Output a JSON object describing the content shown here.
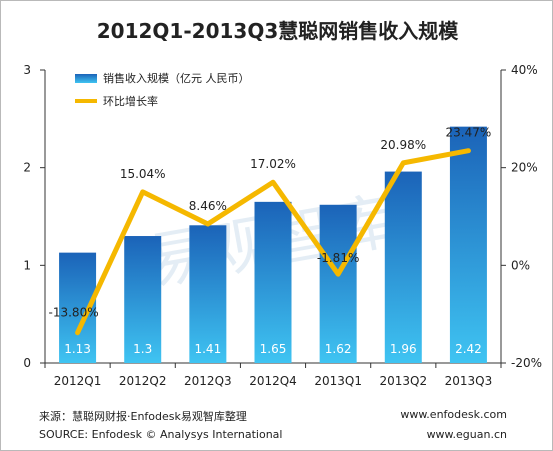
{
  "chart_data": {
    "type": "bar",
    "title": "2012Q1-2013Q3慧聪网销售收入规模",
    "categories": [
      "2012Q1",
      "2012Q2",
      "2012Q3",
      "2012Q4",
      "2013Q1",
      "2013Q2",
      "2013Q3"
    ],
    "series": [
      {
        "name": "销售收入规模（亿元  人民币）",
        "type": "bar",
        "axis": "left",
        "values": [
          1.13,
          1.3,
          1.41,
          1.65,
          1.62,
          1.96,
          2.42
        ],
        "labels": [
          "1.13",
          "1.3",
          "1.41",
          "1.65",
          "1.62",
          "1.96",
          "2.42"
        ]
      },
      {
        "name": "环比增长率",
        "type": "line",
        "axis": "right",
        "values": [
          -13.8,
          15.04,
          8.46,
          17.02,
          -1.81,
          20.98,
          23.47
        ],
        "labels": [
          "-13.80%",
          "15.04%",
          "8.46%",
          "17.02%",
          "-1.81%",
          "20.98%",
          "23.47%"
        ]
      }
    ],
    "y_left": {
      "ylim": [
        0,
        3
      ],
      "ticks": [
        "0",
        "1",
        "2",
        "3"
      ]
    },
    "y_right": {
      "ylim": [
        -20,
        40
      ],
      "ticks": [
        "-20%",
        "0%",
        "20%",
        "40%"
      ]
    },
    "legend_position": "top-left",
    "grid": false,
    "colors": {
      "bar_top": "#1b63b8",
      "bar_bottom": "#3fc4f2",
      "line": "#f5b800",
      "watermark": "#cfe0ee"
    }
  },
  "watermark": "易观智库",
  "footer": {
    "source_cn": "来源：慧聪网财报·Enfodesk易观智库整理",
    "source_en": "SOURCE: Enfodesk © Analysys International",
    "site_1": "www.enfodesk.com",
    "site_2": "www.eguan.cn"
  }
}
